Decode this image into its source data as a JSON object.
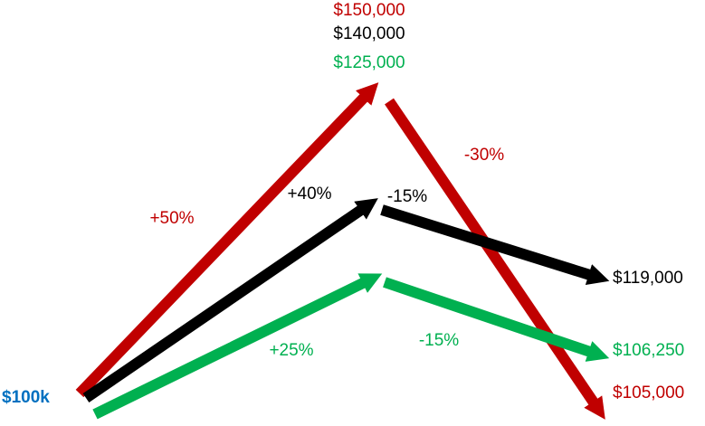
{
  "start": "$100k",
  "paths": [
    {
      "rise": "+50%",
      "peak": "$150,000",
      "fall": "-30%",
      "end": "$105,000"
    },
    {
      "rise": "+40%",
      "peak": "$140,000",
      "fall": "-15%",
      "end": "$119,000"
    },
    {
      "rise": "+25%",
      "peak": "$125,000",
      "fall": "-15%",
      "end": "$106,250"
    }
  ]
}
